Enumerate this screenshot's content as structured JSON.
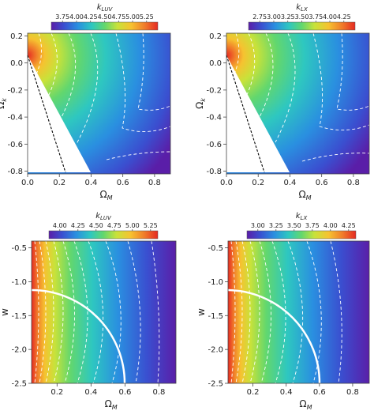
{
  "colors": {
    "scale": [
      "#5a1ea8",
      "#3a4fd0",
      "#2a8fe0",
      "#2ec7c0",
      "#62d76e",
      "#c8e23a",
      "#f6c230",
      "#f07a2a",
      "#e52a22"
    ],
    "contour": "#ffffff",
    "constraint_line": "#000000",
    "phantom_line": "#ffffff"
  },
  "chart_data": [
    {
      "type": "heatmap",
      "colorbar_title": "k_LUV",
      "colorbar_title_main": "k",
      "colorbar_title_sub": "LUV",
      "colorbar_ticks": [
        "3.75",
        "4.00",
        "4.25",
        "4.50",
        "4.75",
        "5.00",
        "5.25"
      ],
      "colorbar_range": [
        3.55,
        5.45
      ],
      "xlabel_main": "Ω",
      "xlabel_sub": "M",
      "ylabel_main": "Ω",
      "ylabel_sub": "k",
      "x_ticks": [
        "0.0",
        "0.2",
        "0.4",
        "0.6",
        "0.8"
      ],
      "y_ticks": [
        "0.2",
        "0.0",
        "-0.2",
        "-0.4",
        "-0.6",
        "-0.8"
      ],
      "xlim": [
        0,
        0.9
      ],
      "ylim": [
        -0.82,
        0.22
      ],
      "excluded_region": [
        [
          0,
          0.0
        ],
        [
          0.4,
          -0.82
        ],
        [
          0,
          -0.82
        ]
      ],
      "dashed_constraint": [
        [
          0,
          0.0
        ],
        [
          0.24,
          -0.82
        ]
      ],
      "contours_note": "white dashed iso-k contours"
    },
    {
      "type": "heatmap",
      "colorbar_title": "k_LX",
      "colorbar_title_main": "k",
      "colorbar_title_sub": "LX",
      "colorbar_ticks": [
        "2.75",
        "3.00",
        "3.25",
        "3.50",
        "3.75",
        "4.00",
        "4.25"
      ],
      "colorbar_range": [
        2.55,
        4.45
      ],
      "xlabel_main": "Ω",
      "xlabel_sub": "M",
      "ylabel_main": "Ω",
      "ylabel_sub": "k",
      "x_ticks": [
        "0.0",
        "0.2",
        "0.4",
        "0.6",
        "0.8"
      ],
      "y_ticks": [
        "0.2",
        "0.0",
        "-0.2",
        "-0.4",
        "-0.6",
        "-0.8"
      ],
      "xlim": [
        0,
        0.9
      ],
      "ylim": [
        -0.82,
        0.22
      ],
      "excluded_region": [
        [
          0,
          0.0
        ],
        [
          0.4,
          -0.82
        ],
        [
          0,
          -0.82
        ]
      ],
      "dashed_constraint": [
        [
          0,
          0.0
        ],
        [
          0.24,
          -0.82
        ]
      ]
    },
    {
      "type": "heatmap",
      "colorbar_title": "k_LUV",
      "colorbar_title_main": "k",
      "colorbar_title_sub": "LUV",
      "colorbar_ticks": [
        "4.00",
        "4.25",
        "4.50",
        "4.75",
        "5.00",
        "5.25"
      ],
      "colorbar_range": [
        3.85,
        5.35
      ],
      "xlabel_main": "Ω",
      "xlabel_sub": "M",
      "ylabel_main": "w",
      "ylabel_sub": "",
      "x_ticks": [
        "0.2",
        "0.4",
        "0.6",
        "0.8"
      ],
      "y_ticks": [
        "-0.5",
        "-1.0",
        "-1.5",
        "-2.0",
        "-2.5"
      ],
      "xlim": [
        0.05,
        0.9
      ],
      "ylim": [
        -2.5,
        -0.4
      ],
      "solid_constraint_curve": "quarter ellipse from (0.05, -1.05) to (0.6, -2.5)"
    },
    {
      "type": "heatmap",
      "colorbar_title": "k_LX",
      "colorbar_title_main": "k",
      "colorbar_title_sub": "LX",
      "colorbar_ticks": [
        "3.00",
        "3.25",
        "3.50",
        "3.75",
        "4.00",
        "4.25"
      ],
      "colorbar_range": [
        2.85,
        4.35
      ],
      "xlabel_main": "Ω",
      "xlabel_sub": "M",
      "ylabel_main": "w",
      "ylabel_sub": "",
      "x_ticks": [
        "0.2",
        "0.4",
        "0.6",
        "0.8"
      ],
      "y_ticks": [
        "-0.5",
        "-1.0",
        "-1.5",
        "-2.0",
        "-2.5"
      ],
      "xlim": [
        0.05,
        0.9
      ],
      "ylim": [
        -2.5,
        -0.4
      ],
      "solid_constraint_curve": "quarter ellipse from (0.05, -1.05) to (0.6, -2.5)"
    }
  ]
}
